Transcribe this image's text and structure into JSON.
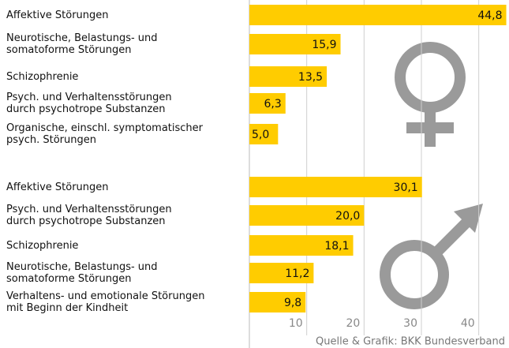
{
  "chart_data": {
    "type": "bar",
    "orientation": "horizontal",
    "color": "#ffcc00",
    "xlim": [
      0,
      45
    ],
    "xticks": [
      10,
      20,
      30,
      40
    ],
    "grid": true,
    "source": "Quelle & Grafik: BKK Bundesverband",
    "groups": [
      {
        "categories": [
          "Affektive Störungen",
          "Neurotische, Belastungs- und\nsomatoforme Störungen",
          "Schizophrenie",
          "Psych. und Verhaltensstörungen\ndurch psychotrope Substanzen",
          "Organische, einschl. symptomatischer\npsych. Störungen"
        ],
        "values": [
          44.8,
          15.9,
          13.5,
          6.3,
          5.0
        ],
        "value_labels": [
          "44,8",
          "15,9",
          "13,5",
          "6,3",
          "5,0"
        ]
      },
      {
        "categories": [
          "Affektive Störungen",
          "Psych. und Verhaltensstörungen\ndurch psychotrope Substanzen",
          "Schizophrenie",
          "Neurotische, Belastungs- und\nsomatoforme Störungen",
          "Verhaltens- und emotionale Störungen\nmit Beginn der Kindheit"
        ],
        "values": [
          30.1,
          20.0,
          18.1,
          11.2,
          9.8
        ],
        "value_labels": [
          "30,1",
          "20,0",
          "18,1",
          "11,2",
          "9,8"
        ]
      }
    ]
  }
}
